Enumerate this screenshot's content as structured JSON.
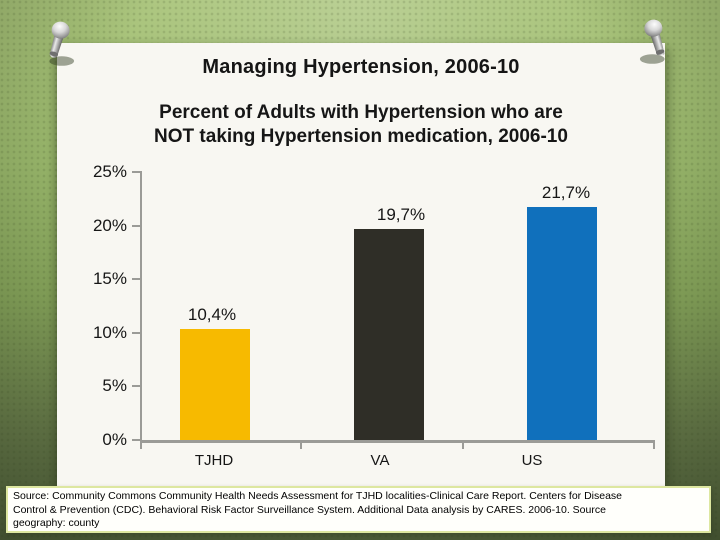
{
  "slide": {
    "title": "Managing Hypertension, 2006-10",
    "chart_title_line1": "Percent of Adults with Hypertension who are",
    "chart_title_line2": "NOT taking Hypertension medication, 2006-10"
  },
  "chart_data": {
    "type": "bar",
    "title": "Percent of Adults with Hypertension who are NOT taking Hypertension medication, 2006-10",
    "categories": [
      "TJHD",
      "VA",
      "US"
    ],
    "values": [
      10.4,
      19.7,
      21.7
    ],
    "value_labels": [
      "10,4%",
      "19,7%",
      "21,7%"
    ],
    "bar_colors": [
      "#F7BA00",
      "#2F2E27",
      "#1070BC"
    ],
    "xlabel": "",
    "ylabel": "",
    "ylim": [
      0,
      25
    ],
    "yticks": [
      0,
      5,
      10,
      15,
      20,
      25
    ],
    "ytick_labels": [
      "0%",
      "5%",
      "10%",
      "15%",
      "20%",
      "25%"
    ],
    "grid": false,
    "legend": false
  },
  "source_box": {
    "lines": [
      "Source: Community Commons Community Health Needs Assessment for TJHD localities-Clinical Care Report. Centers for Disease",
      "Control & Prevention (CDC). Behavioral Risk Factor Surveillance System. Additional Data analysis by CARES. 2006-10. Source",
      "geography: county"
    ]
  },
  "decorations": {
    "pushpin_left": "push-pin",
    "pushpin_right": "push-pin"
  },
  "colors": {
    "background_green": "#93B165",
    "slide_paper": "#F8F7F2",
    "axis_gray": "#9B9B97",
    "source_border": "#DDE7A0",
    "text": "#161616"
  }
}
